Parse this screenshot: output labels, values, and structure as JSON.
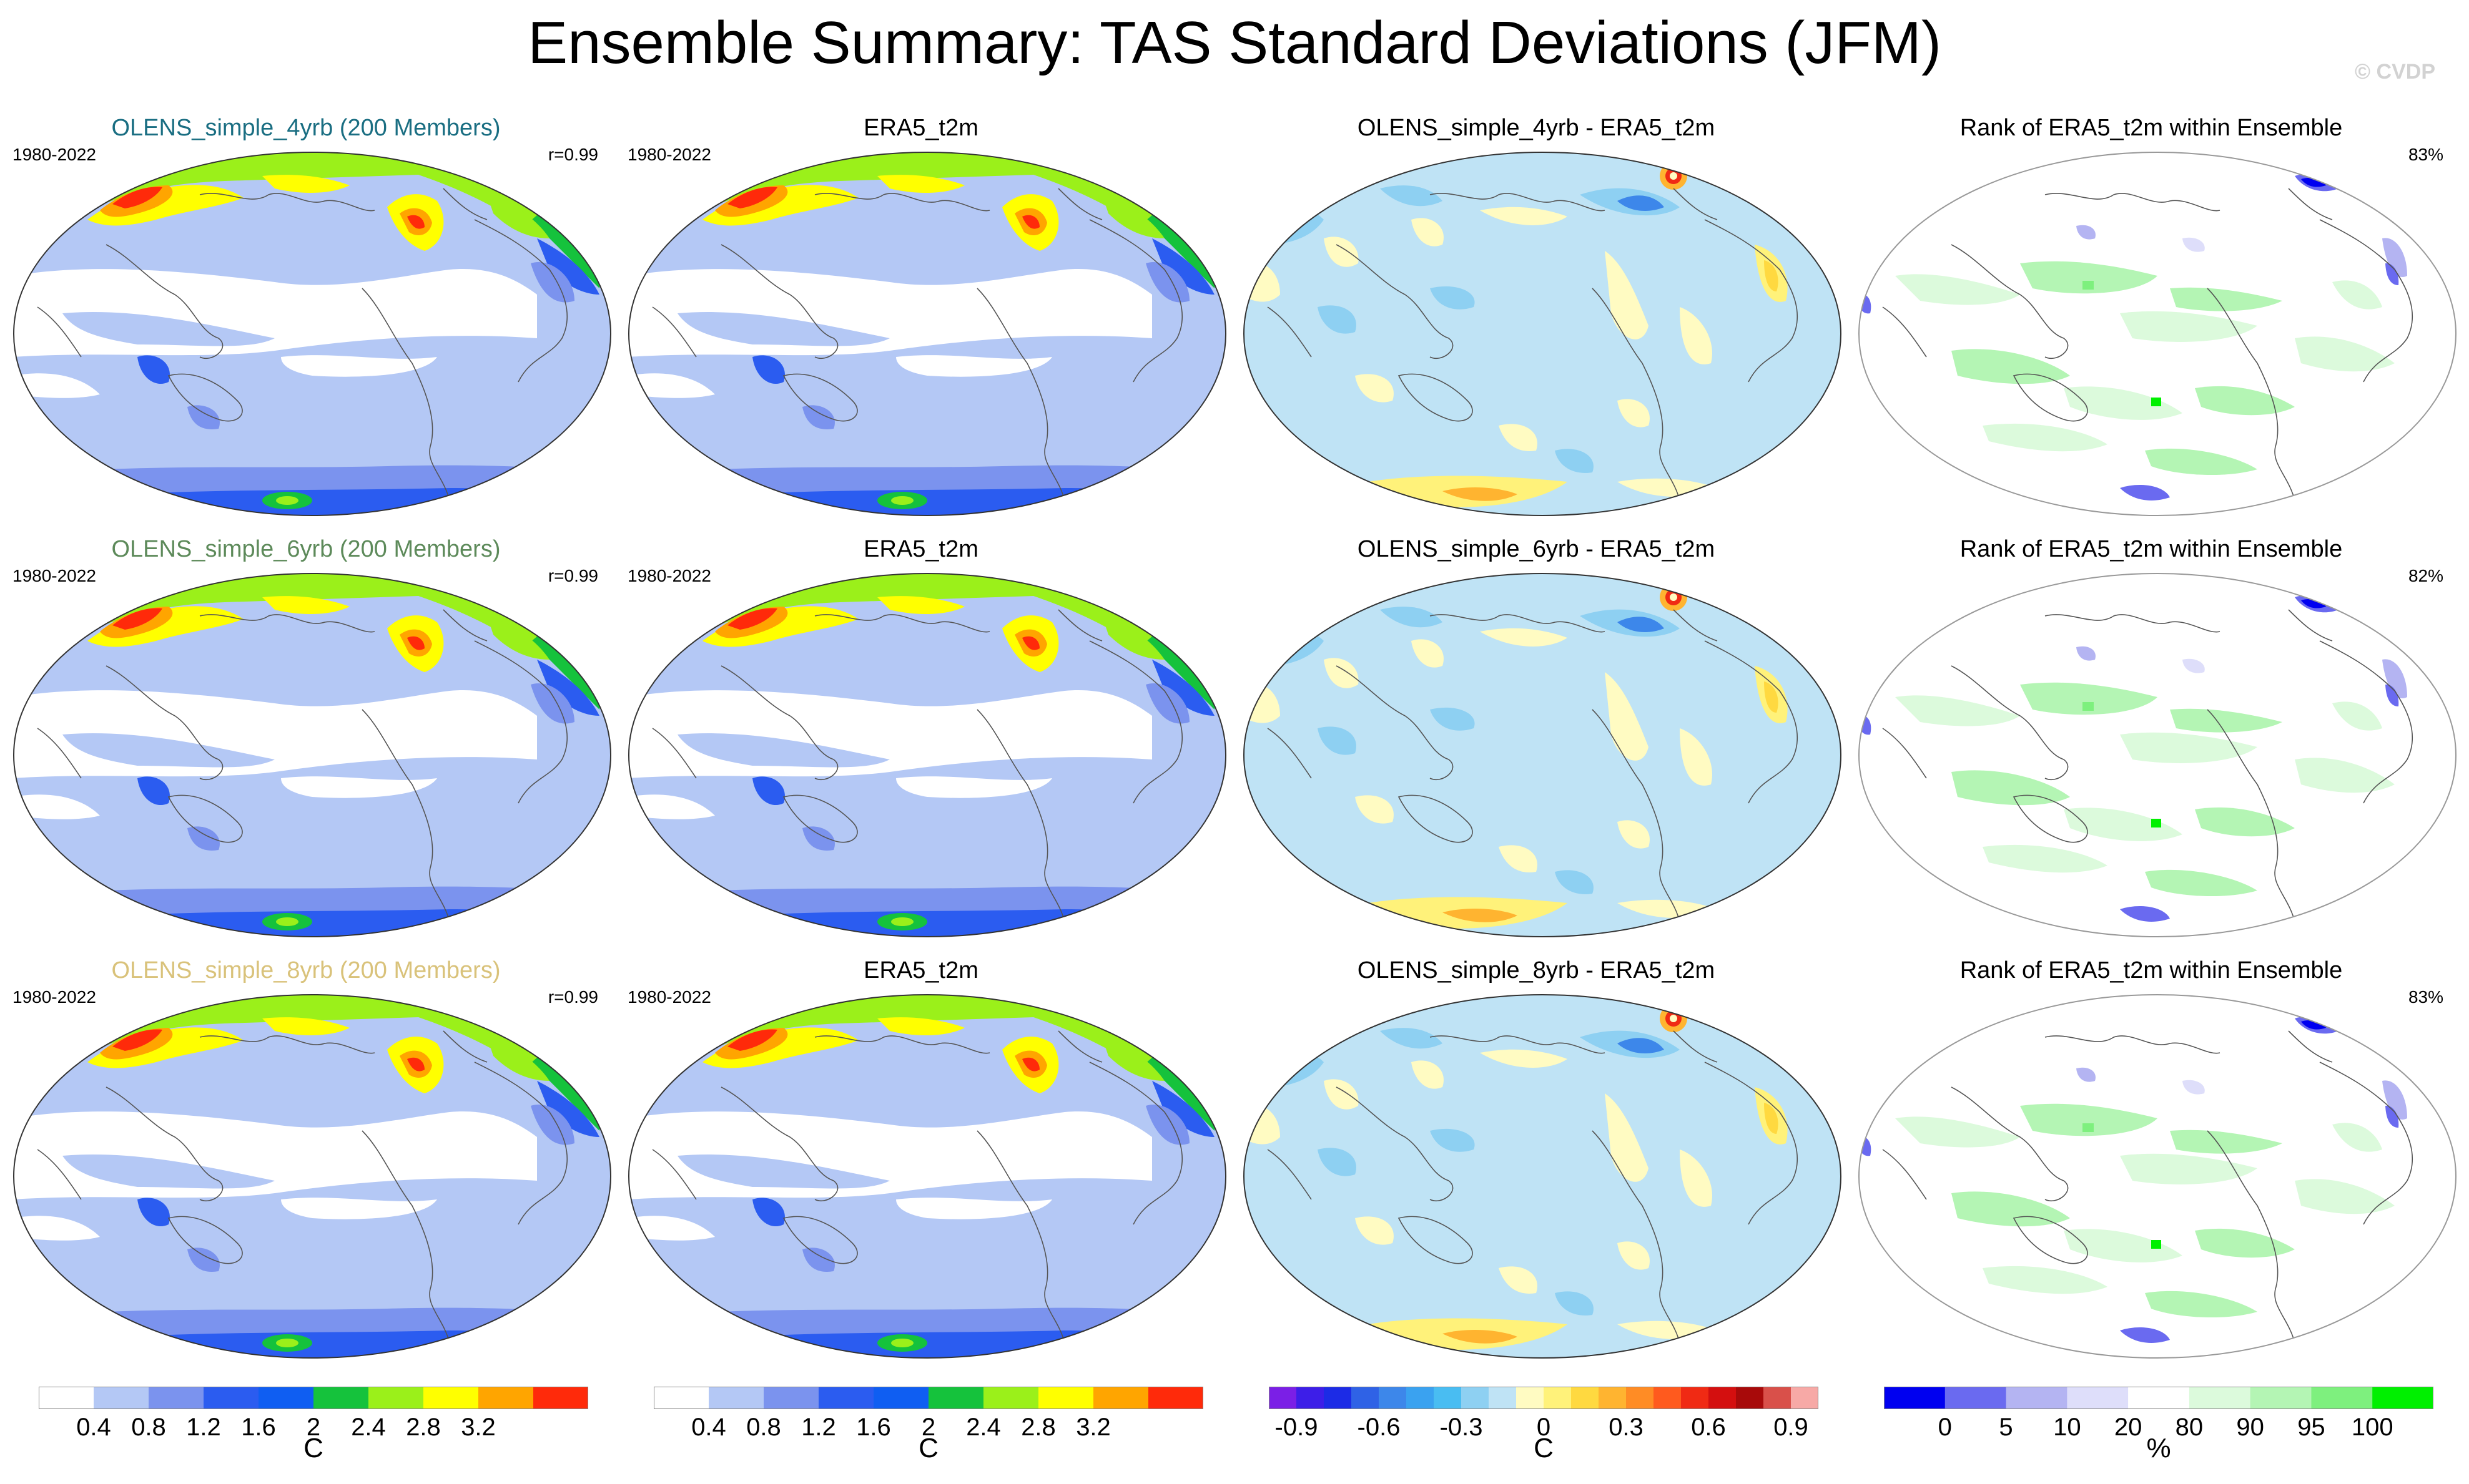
{
  "title": "Ensemble Summary: TAS Standard Deviations (JFM)",
  "watermark": "© CVDP",
  "rows": [
    {
      "model": {
        "title": "OLENS_simple_4yrb (200 Members)",
        "title_color": "#1a6e82",
        "years": "1980-2022",
        "stat": "r=0.99"
      },
      "obs": {
        "title": "ERA5_t2m",
        "years": "1980-2022"
      },
      "diff": {
        "title": "OLENS_simple_4yrb - ERA5_t2m"
      },
      "rank": {
        "title": "Rank of ERA5_t2m within Ensemble",
        "stat": "83%"
      }
    },
    {
      "model": {
        "title": "OLENS_simple_6yrb (200 Members)",
        "title_color": "#5d8a5a",
        "years": "1980-2022",
        "stat": "r=0.99"
      },
      "obs": {
        "title": "ERA5_t2m",
        "years": "1980-2022"
      },
      "diff": {
        "title": "OLENS_simple_6yrb - ERA5_t2m"
      },
      "rank": {
        "title": "Rank of ERA5_t2m within Ensemble",
        "stat": "82%"
      }
    },
    {
      "model": {
        "title": "OLENS_simple_8yrb (200 Members)",
        "title_color": "#d9c27a",
        "years": "1980-2022",
        "stat": "r=0.99"
      },
      "obs": {
        "title": "ERA5_t2m",
        "years": "1980-2022"
      },
      "diff": {
        "title": "OLENS_simple_8yrb - ERA5_t2m"
      },
      "rank": {
        "title": "Rank of ERA5_t2m within Ensemble",
        "stat": "83%"
      }
    }
  ],
  "colorbars": [
    {
      "name": "std",
      "unit": "C",
      "colors": [
        "#ffffff",
        "#b4c8f5",
        "#7b93ee",
        "#2b5cf0",
        "#0f5ef2",
        "#15c23c",
        "#9bf01a",
        "#ffff00",
        "#ffa500",
        "#ff2a0a"
      ],
      "labels": [
        "0.4",
        "0.8",
        "1.2",
        "1.6",
        "2",
        "2.4",
        "2.8",
        "3.2"
      ]
    },
    {
      "name": "std",
      "unit": "C",
      "colors": [
        "#ffffff",
        "#b4c8f5",
        "#7b93ee",
        "#2b5cf0",
        "#0f5ef2",
        "#15c23c",
        "#9bf01a",
        "#ffff00",
        "#ffa500",
        "#ff2a0a"
      ],
      "labels": [
        "0.4",
        "0.8",
        "1.2",
        "1.6",
        "2",
        "2.4",
        "2.8",
        "3.2"
      ]
    },
    {
      "name": "diff",
      "unit": "C",
      "colors": [
        "#7b1fe6",
        "#3d1ee8",
        "#1c2be6",
        "#2f62e6",
        "#3d87ea",
        "#3aa2f0",
        "#49bdf2",
        "#8ed0f2",
        "#bfe3f5",
        "#fffbc2",
        "#fff27a",
        "#ffd940",
        "#ffb430",
        "#ff8c25",
        "#ff5a1e",
        "#f02a14",
        "#d40f0f",
        "#a80a0a",
        "#d9504a",
        "#f7a9a6"
      ],
      "labels": [
        "-0.9",
        "-0.6",
        "-0.3",
        "0",
        "0.3",
        "0.6",
        "0.9"
      ]
    },
    {
      "name": "rank",
      "unit": "%",
      "colors": [
        "#0000f0",
        "#6a6af0",
        "#b4b4f2",
        "#dedefa",
        "#ffffff",
        "#dcfadc",
        "#b4f5b4",
        "#7ef07e",
        "#00f000"
      ],
      "labels": [
        "0",
        "5",
        "10",
        "20",
        "80",
        "90",
        "95",
        "100"
      ]
    }
  ]
}
